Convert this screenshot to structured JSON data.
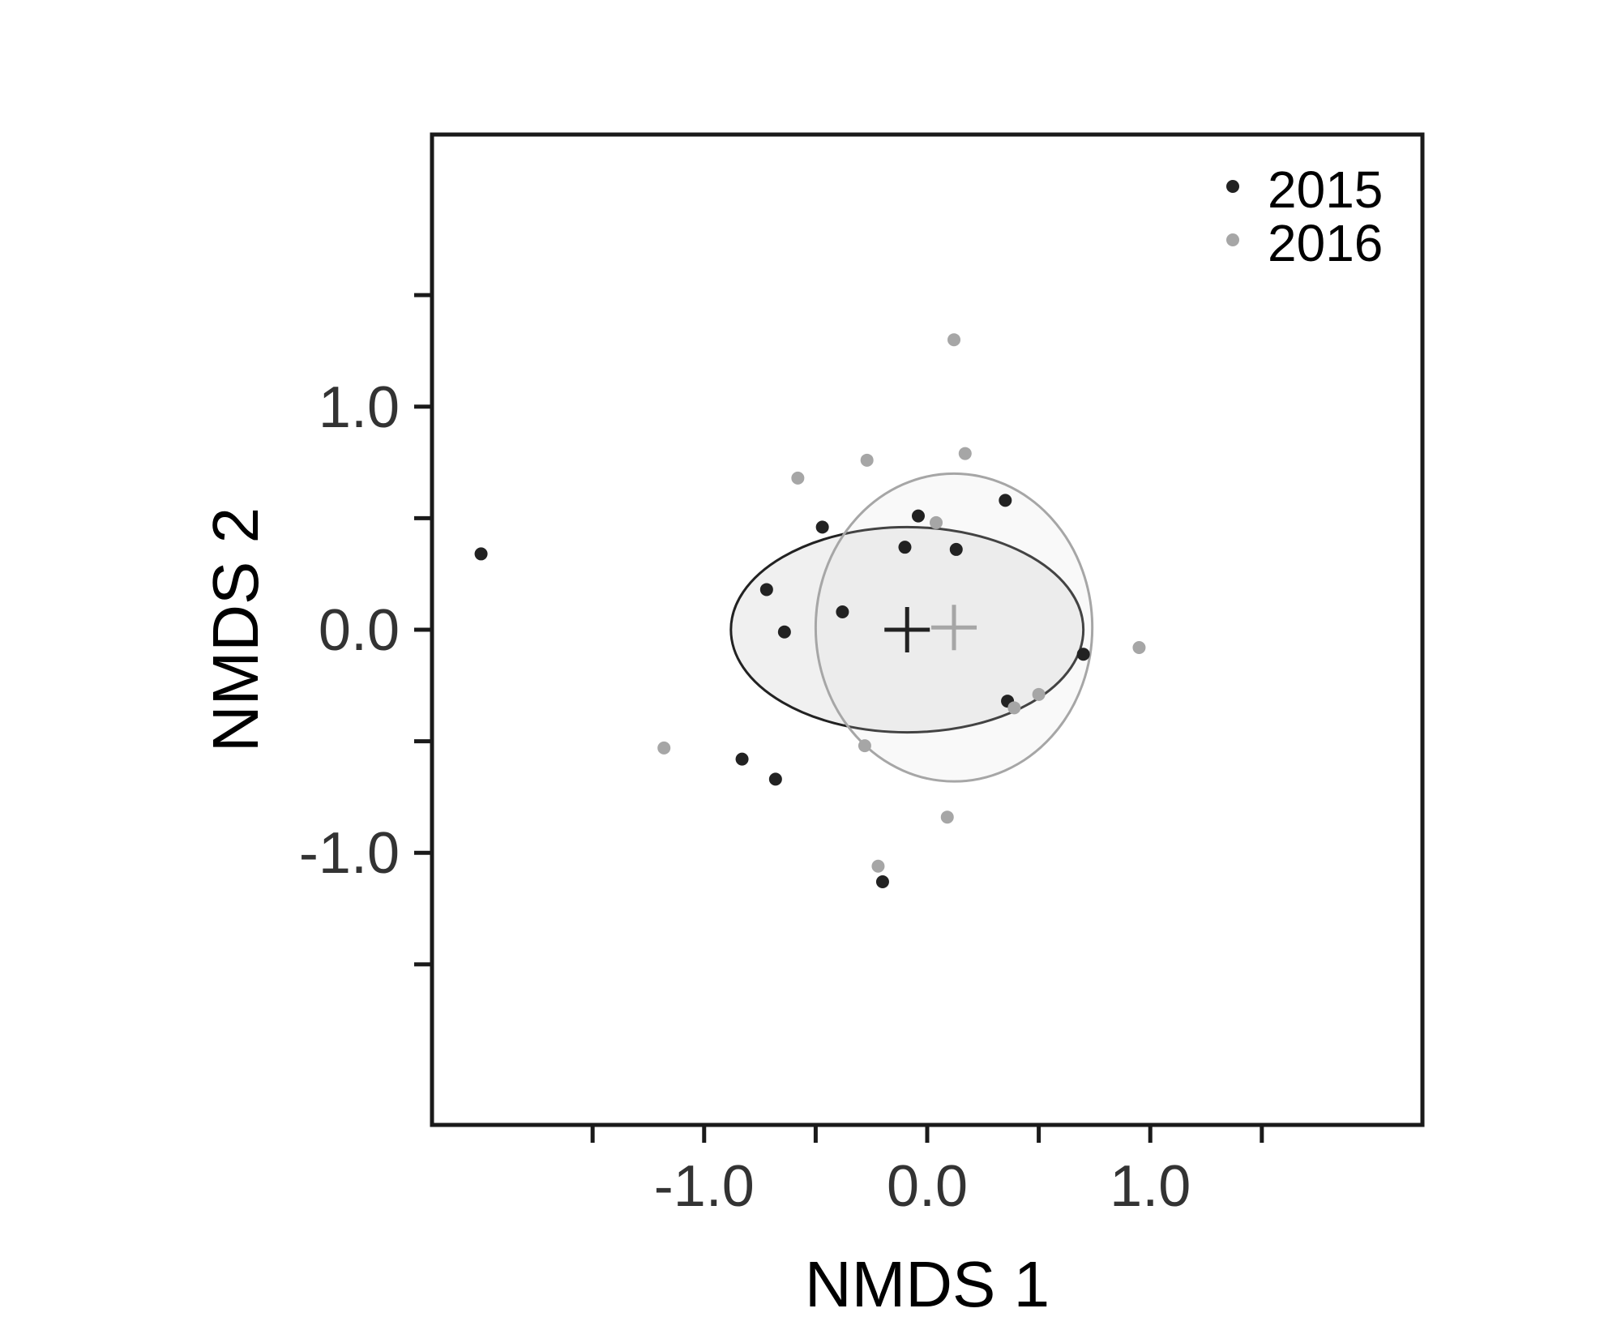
{
  "chart_data": {
    "type": "scatter",
    "title": "",
    "xlabel": "NMDS 1",
    "ylabel": "NMDS 2",
    "xlim": [
      -2.22,
      2.22
    ],
    "ylim": [
      -2.22,
      2.22
    ],
    "x_ticks": [
      -1.5,
      -1.0,
      -0.5,
      0.0,
      0.5,
      1.0,
      1.5
    ],
    "x_tick_labels": [
      "",
      "-1.0",
      "",
      "0.0",
      "",
      "1.0",
      ""
    ],
    "y_ticks": [
      -1.5,
      -1.0,
      -0.5,
      0.0,
      0.5,
      1.0,
      1.5
    ],
    "y_tick_labels": [
      "",
      "-1.0",
      "",
      "0.0",
      "",
      "1.0",
      ""
    ],
    "grid": false,
    "legend_position": "top-right",
    "series": [
      {
        "name": "2015",
        "color": "#222222",
        "points": [
          {
            "x": -2.0,
            "y": 0.34
          },
          {
            "x": -0.47,
            "y": 0.46
          },
          {
            "x": -0.72,
            "y": 0.18
          },
          {
            "x": -0.64,
            "y": -0.01
          },
          {
            "x": -0.38,
            "y": 0.08
          },
          {
            "x": -0.1,
            "y": 0.37
          },
          {
            "x": -0.04,
            "y": 0.51
          },
          {
            "x": 0.13,
            "y": 0.36
          },
          {
            "x": 0.35,
            "y": 0.58
          },
          {
            "x": 0.7,
            "y": -0.11
          },
          {
            "x": 0.36,
            "y": -0.32
          },
          {
            "x": -0.83,
            "y": -0.58
          },
          {
            "x": -0.68,
            "y": -0.67
          },
          {
            "x": -0.2,
            "y": -1.13
          }
        ],
        "centroid": {
          "x": -0.09,
          "y": 0.0
        },
        "ellipse": {
          "cx": -0.09,
          "cy": 0.0,
          "rx": 0.79,
          "ry": 0.46
        }
      },
      {
        "name": "2016",
        "color": "#a6a6a6",
        "points": [
          {
            "x": 0.12,
            "y": 1.3
          },
          {
            "x": -0.58,
            "y": 0.68
          },
          {
            "x": -0.27,
            "y": 0.76
          },
          {
            "x": 0.17,
            "y": 0.79
          },
          {
            "x": 0.04,
            "y": 0.48
          },
          {
            "x": 0.95,
            "y": -0.08
          },
          {
            "x": 0.5,
            "y": -0.29
          },
          {
            "x": 0.39,
            "y": -0.35
          },
          {
            "x": -1.18,
            "y": -0.53
          },
          {
            "x": -0.28,
            "y": -0.52
          },
          {
            "x": 0.09,
            "y": -0.84
          },
          {
            "x": -0.22,
            "y": -1.06
          }
        ],
        "centroid": {
          "x": 0.12,
          "y": 0.01
        },
        "ellipse": {
          "cx": 0.12,
          "cy": 0.01,
          "rx": 0.62,
          "ry": 0.69
        }
      }
    ]
  }
}
